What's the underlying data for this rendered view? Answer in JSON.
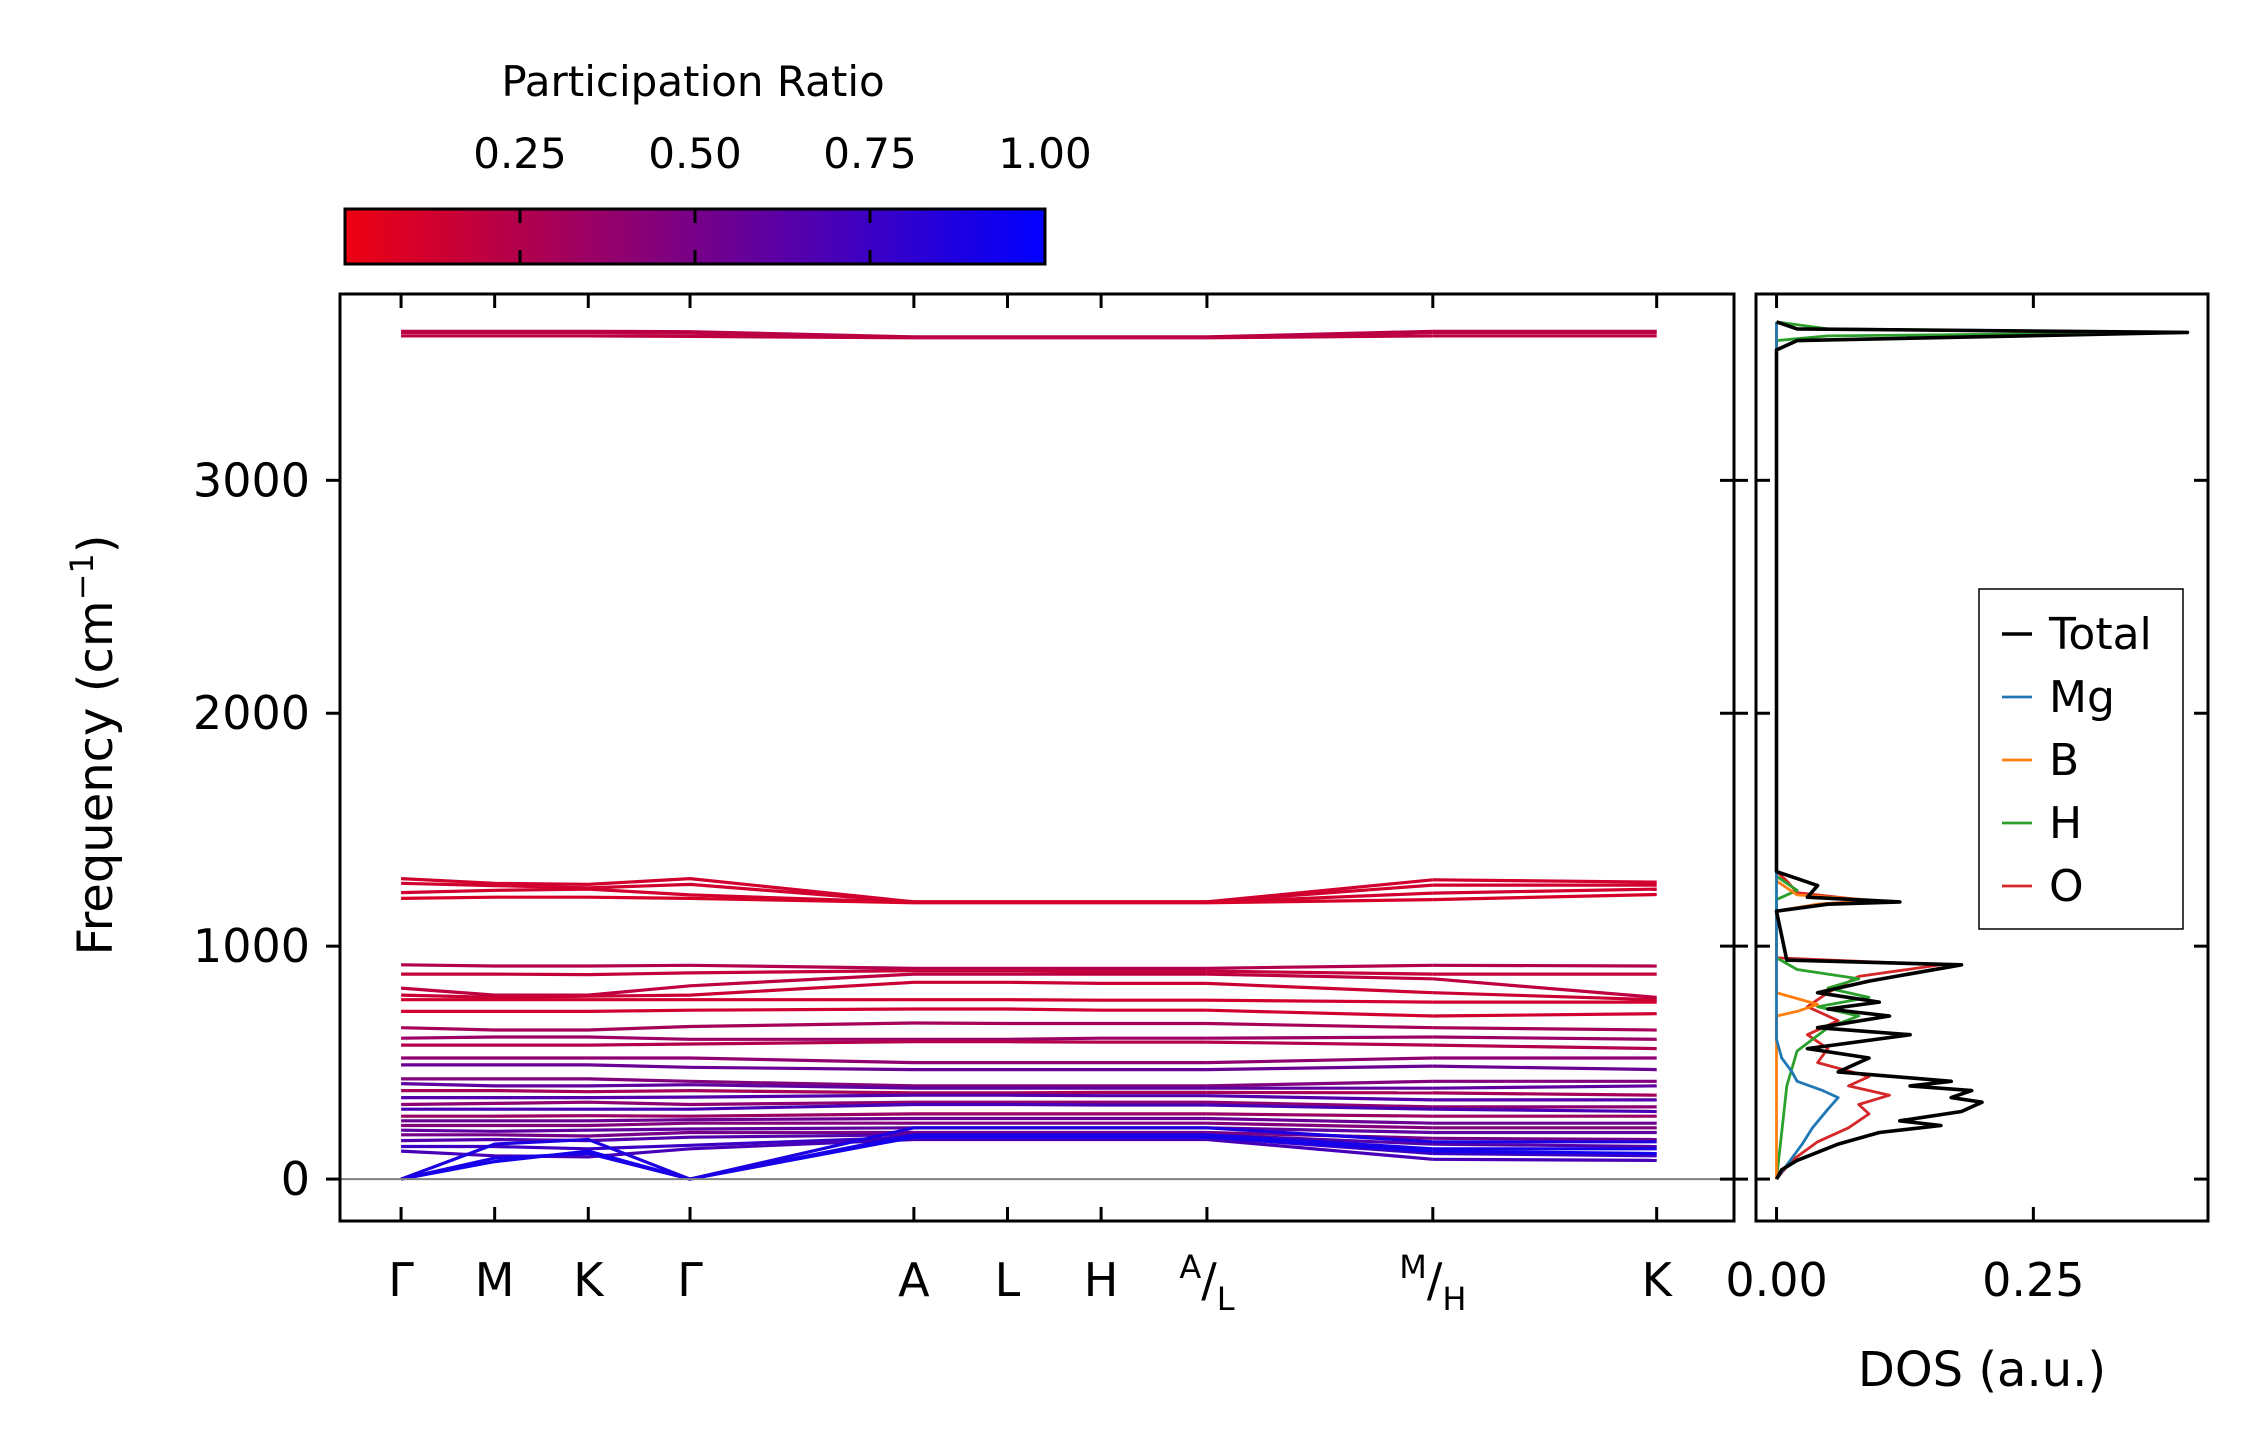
{
  "chart_data": [
    {
      "type": "line",
      "name": "phonon-band-structure",
      "ylabel": "Frequency (cm⁻¹)",
      "ylabel_base": "Frequency (cm",
      "ylabel_exp": "−1",
      "ylabel_close": ")",
      "ylim": [
        -180,
        3800
      ],
      "yticks": [
        0,
        1000,
        2000,
        3000
      ],
      "ytick_labels": [
        "0",
        "1000",
        "2000",
        "3000"
      ],
      "x_path_positions": [
        0,
        0.46,
        0.92,
        1.42,
        2.52,
        2.98,
        3.44,
        3.96,
        5.07,
        6.17
      ],
      "xlim": [
        -0.3,
        6.55
      ],
      "xtick_labels": [
        "Γ",
        "M",
        "K",
        "Γ",
        "A",
        "L",
        "H",
        "A/L",
        "M/H",
        "K"
      ],
      "split_labels": [
        {
          "index": 7,
          "top": "A",
          "sep": "/",
          "bottom": "L"
        },
        {
          "index": 8,
          "top": "M",
          "sep": "/",
          "bottom": "H"
        }
      ],
      "zero_line": 0,
      "colorbar": {
        "title": "Participation Ratio",
        "range": [
          0.0,
          1.0
        ],
        "ticks": [
          0.25,
          0.5,
          0.75,
          1.0
        ],
        "tick_labels": [
          "0.25",
          "0.50",
          "0.75",
          "1.00"
        ],
        "color_low": "#ee0011",
        "color_high": "#0000ff"
      },
      "bands": [
        {
          "freqs": [
            3620,
            3620,
            3620,
            3618,
            3612,
            3612,
            3612,
            3612,
            3620,
            3620
          ],
          "pr": 0.2
        },
        {
          "freqs": [
            3635,
            3635,
            3635,
            3632,
            3614,
            3614,
            3614,
            3614,
            3635,
            3635
          ],
          "pr": 0.2
        },
        {
          "freqs": [
            3640,
            3640,
            3640,
            3638,
            3616,
            3616,
            3616,
            3616,
            3640,
            3640
          ],
          "pr": 0.22
        },
        {
          "freqs": [
            1290,
            1270,
            1265,
            1290,
            1190,
            1190,
            1190,
            1190,
            1285,
            1275
          ],
          "pr": 0.12
        },
        {
          "freqs": [
            1270,
            1260,
            1250,
            1265,
            1190,
            1190,
            1190,
            1190,
            1262,
            1262
          ],
          "pr": 0.12
        },
        {
          "freqs": [
            1230,
            1240,
            1245,
            1220,
            1188,
            1188,
            1188,
            1188,
            1228,
            1245
          ],
          "pr": 0.12
        },
        {
          "freqs": [
            1205,
            1210,
            1210,
            1205,
            1186,
            1186,
            1186,
            1186,
            1200,
            1222
          ],
          "pr": 0.1
        },
        {
          "freqs": [
            920,
            915,
            915,
            918,
            905,
            905,
            905,
            905,
            918,
            915
          ],
          "pr": 0.25
        },
        {
          "freqs": [
            880,
            880,
            878,
            885,
            895,
            895,
            893,
            893,
            880,
            880
          ],
          "pr": 0.18
        },
        {
          "freqs": [
            820,
            790,
            790,
            830,
            880,
            880,
            880,
            880,
            860,
            780
          ],
          "pr": 0.2
        },
        {
          "freqs": [
            790,
            780,
            785,
            790,
            845,
            845,
            840,
            840,
            800,
            770
          ],
          "pr": 0.15
        },
        {
          "freqs": [
            770,
            770,
            770,
            770,
            770,
            770,
            768,
            768,
            760,
            760
          ],
          "pr": 0.12
        },
        {
          "freqs": [
            720,
            720,
            720,
            725,
            730,
            730,
            725,
            725,
            700,
            710
          ],
          "pr": 0.12
        },
        {
          "freqs": [
            650,
            640,
            640,
            655,
            670,
            668,
            668,
            668,
            650,
            640
          ],
          "pr": 0.3
        },
        {
          "freqs": [
            605,
            610,
            610,
            600,
            600,
            600,
            605,
            605,
            610,
            600
          ],
          "pr": 0.35
        },
        {
          "freqs": [
            575,
            575,
            575,
            580,
            590,
            590,
            588,
            588,
            575,
            560
          ],
          "pr": 0.25
        },
        {
          "freqs": [
            520,
            520,
            520,
            520,
            500,
            500,
            500,
            500,
            520,
            520
          ],
          "pr": 0.4
        },
        {
          "freqs": [
            490,
            490,
            490,
            480,
            470,
            470,
            470,
            470,
            485,
            470
          ],
          "pr": 0.55
        },
        {
          "freqs": [
            430,
            430,
            430,
            420,
            400,
            400,
            400,
            400,
            420,
            420
          ],
          "pr": 0.45
        },
        {
          "freqs": [
            410,
            400,
            400,
            405,
            390,
            390,
            390,
            390,
            390,
            400
          ],
          "pr": 0.6
        },
        {
          "freqs": [
            380,
            380,
            375,
            380,
            370,
            370,
            372,
            372,
            370,
            360
          ],
          "pr": 0.3
        },
        {
          "freqs": [
            350,
            350,
            350,
            352,
            360,
            360,
            358,
            358,
            340,
            340
          ],
          "pr": 0.65
        },
        {
          "freqs": [
            320,
            325,
            330,
            320,
            330,
            330,
            330,
            330,
            310,
            310
          ],
          "pr": 0.4
        },
        {
          "freqs": [
            300,
            300,
            300,
            300,
            320,
            320,
            318,
            318,
            300,
            290
          ],
          "pr": 0.7
        },
        {
          "freqs": [
            270,
            270,
            272,
            270,
            280,
            280,
            280,
            280,
            270,
            270
          ],
          "pr": 0.35
        },
        {
          "freqs": [
            250,
            250,
            250,
            255,
            260,
            260,
            260,
            260,
            240,
            240
          ],
          "pr": 0.55
        },
        {
          "freqs": [
            230,
            230,
            230,
            240,
            240,
            240,
            240,
            240,
            220,
            220
          ],
          "pr": 0.45
        },
        {
          "freqs": [
            210,
            205,
            210,
            215,
            220,
            220,
            220,
            220,
            200,
            200
          ],
          "pr": 0.6
        },
        {
          "freqs": [
            190,
            190,
            185,
            200,
            200,
            200,
            200,
            200,
            175,
            170
          ],
          "pr": 0.5
        },
        {
          "freqs": [
            165,
            170,
            165,
            180,
            190,
            190,
            190,
            190,
            150,
            140
          ],
          "pr": 0.65
        },
        {
          "freqs": [
            140,
            140,
            130,
            145,
            180,
            180,
            180,
            180,
            110,
            100
          ],
          "pr": 0.75
        },
        {
          "freqs": [
            120,
            100,
            95,
            130,
            170,
            170,
            170,
            170,
            85,
            80
          ],
          "pr": 0.7
        },
        {
          "freqs": [
            0,
            75,
            120,
            0,
            180,
            180,
            180,
            180,
            120,
            110
          ],
          "pr": 0.92
        },
        {
          "freqs": [
            0,
            90,
            110,
            0,
            190,
            190,
            190,
            190,
            130,
            130
          ],
          "pr": 0.9
        },
        {
          "freqs": [
            0,
            150,
            170,
            0,
            220,
            220,
            220,
            220,
            160,
            160
          ],
          "pr": 0.88
        }
      ]
    },
    {
      "type": "line",
      "name": "phonon-dos",
      "xlabel": "DOS (a.u.)",
      "xlim": [
        -0.02,
        0.42
      ],
      "xticks": [
        0.0,
        0.25
      ],
      "xtick_labels": [
        "0.00",
        "0.25"
      ],
      "ylim": [
        -180,
        3800
      ],
      "legend_position": "center-right",
      "series": [
        {
          "name": "Total",
          "color": "#000000",
          "points": [
            [
              0.0,
              0
            ],
            [
              0.005,
              40
            ],
            [
              0.02,
              80
            ],
            [
              0.06,
              150
            ],
            [
              0.1,
              200
            ],
            [
              0.16,
              230
            ],
            [
              0.12,
              250
            ],
            [
              0.18,
              290
            ],
            [
              0.2,
              330
            ],
            [
              0.17,
              350
            ],
            [
              0.19,
              380
            ],
            [
              0.13,
              400
            ],
            [
              0.17,
              420
            ],
            [
              0.06,
              460
            ],
            [
              0.09,
              520
            ],
            [
              0.03,
              560
            ],
            [
              0.13,
              620
            ],
            [
              0.04,
              650
            ],
            [
              0.11,
              700
            ],
            [
              0.05,
              730
            ],
            [
              0.1,
              760
            ],
            [
              0.04,
              800
            ],
            [
              0.09,
              850
            ],
            [
              0.18,
              920
            ],
            [
              0.01,
              940
            ],
            [
              0.0,
              1150
            ],
            [
              0.05,
              1180
            ],
            [
              0.12,
              1190
            ],
            [
              0.03,
              1210
            ],
            [
              0.04,
              1260
            ],
            [
              0.02,
              1290
            ],
            [
              0.0,
              1320
            ],
            [
              0.0,
              3560
            ],
            [
              0.02,
              3600
            ],
            [
              0.4,
              3635
            ],
            [
              0.02,
              3650
            ],
            [
              0.0,
              3680
            ]
          ]
        },
        {
          "name": "Mg",
          "color": "#1f77b4",
          "points": [
            [
              0.0,
              0
            ],
            [
              0.01,
              60
            ],
            [
              0.025,
              150
            ],
            [
              0.035,
              220
            ],
            [
              0.05,
              300
            ],
            [
              0.06,
              350
            ],
            [
              0.045,
              380
            ],
            [
              0.02,
              420
            ],
            [
              0.015,
              460
            ],
            [
              0.005,
              520
            ],
            [
              0.0,
              600
            ],
            [
              0.0,
              3680
            ]
          ]
        },
        {
          "name": "B",
          "color": "#ff7f0e",
          "points": [
            [
              0.0,
              0
            ],
            [
              0.0,
              700
            ],
            [
              0.02,
              720
            ],
            [
              0.04,
              750
            ],
            [
              0.0,
              800
            ],
            [
              0.0,
              1150
            ],
            [
              0.04,
              1180
            ],
            [
              0.1,
              1195
            ],
            [
              0.02,
              1220
            ],
            [
              0.0,
              1280
            ],
            [
              0.0,
              3680
            ]
          ]
        },
        {
          "name": "H",
          "color": "#2ca02c",
          "points": [
            [
              0.0,
              0
            ],
            [
              0.005,
              200
            ],
            [
              0.01,
              400
            ],
            [
              0.02,
              550
            ],
            [
              0.05,
              650
            ],
            [
              0.08,
              700
            ],
            [
              0.04,
              740
            ],
            [
              0.09,
              780
            ],
            [
              0.05,
              820
            ],
            [
              0.08,
              860
            ],
            [
              0.02,
              900
            ],
            [
              0.0,
              950
            ],
            [
              0.0,
              1200
            ],
            [
              0.02,
              1240
            ],
            [
              0.0,
              1300
            ],
            [
              0.0,
              3600
            ],
            [
              0.05,
              3620
            ],
            [
              0.39,
              3635
            ],
            [
              0.05,
              3650
            ],
            [
              0.0,
              3680
            ]
          ]
        },
        {
          "name": "O",
          "color": "#d62728",
          "points": [
            [
              0.0,
              0
            ],
            [
              0.015,
              80
            ],
            [
              0.04,
              160
            ],
            [
              0.07,
              220
            ],
            [
              0.09,
              280
            ],
            [
              0.08,
              320
            ],
            [
              0.11,
              360
            ],
            [
              0.07,
              400
            ],
            [
              0.09,
              440
            ],
            [
              0.04,
              500
            ],
            [
              0.05,
              560
            ],
            [
              0.03,
              620
            ],
            [
              0.06,
              680
            ],
            [
              0.03,
              740
            ],
            [
              0.05,
              800
            ],
            [
              0.08,
              870
            ],
            [
              0.16,
              920
            ],
            [
              0.0,
              950
            ],
            [
              0.0,
              1150
            ],
            [
              0.04,
              1180
            ],
            [
              0.09,
              1195
            ],
            [
              0.02,
              1230
            ],
            [
              0.01,
              1280
            ],
            [
              0.0,
              1320
            ],
            [
              0.0,
              3680
            ]
          ]
        }
      ]
    }
  ]
}
